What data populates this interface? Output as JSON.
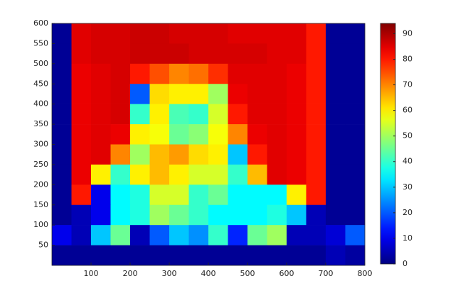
{
  "chart_data": {
    "type": "heatmap",
    "colormap": "jet",
    "x": [
      25,
      75,
      125,
      175,
      225,
      275,
      325,
      375,
      425,
      475,
      525,
      575,
      625,
      675,
      725,
      775
    ],
    "y": [
      575,
      525,
      475,
      425,
      375,
      325,
      275,
      225,
      175,
      125,
      75,
      25
    ],
    "values": [
      [
        2,
        85,
        86,
        86,
        87,
        87,
        86,
        86,
        86,
        85,
        85,
        85,
        85,
        80,
        2,
        2
      ],
      [
        2,
        85,
        86,
        86,
        87,
        87,
        87,
        86,
        86,
        86,
        86,
        85,
        85,
        80,
        2,
        2
      ],
      [
        2,
        84,
        85,
        86,
        80,
        75,
        70,
        72,
        78,
        85,
        85,
        85,
        84,
        80,
        2,
        2
      ],
      [
        2,
        84,
        85,
        86,
        20,
        62,
        60,
        60,
        50,
        84,
        85,
        85,
        84,
        80,
        2,
        2
      ],
      [
        2,
        84,
        85,
        86,
        40,
        60,
        42,
        40,
        55,
        80,
        85,
        85,
        84,
        80,
        2,
        2
      ],
      [
        2,
        84,
        85,
        84,
        60,
        58,
        45,
        48,
        58,
        70,
        84,
        85,
        84,
        80,
        2,
        2
      ],
      [
        2,
        84,
        85,
        70,
        50,
        65,
        68,
        62,
        60,
        30,
        80,
        85,
        84,
        80,
        2,
        2
      ],
      [
        2,
        84,
        60,
        40,
        60,
        65,
        60,
        55,
        55,
        40,
        65,
        85,
        84,
        80,
        2,
        2
      ],
      [
        2,
        80,
        10,
        35,
        38,
        55,
        55,
        40,
        45,
        35,
        35,
        35,
        60,
        80,
        2,
        2
      ],
      [
        2,
        5,
        10,
        35,
        38,
        50,
        45,
        40,
        35,
        35,
        35,
        38,
        30,
        5,
        2,
        2
      ],
      [
        10,
        5,
        30,
        45,
        5,
        20,
        30,
        25,
        40,
        15,
        45,
        50,
        5,
        5,
        8,
        20
      ],
      [
        2,
        2,
        2,
        2,
        2,
        2,
        2,
        2,
        2,
        2,
        2,
        2,
        2,
        2,
        5,
        3
      ]
    ],
    "xlim": [
      0,
      800
    ],
    "ylim": [
      0,
      600
    ],
    "xticks": [
      100,
      200,
      300,
      400,
      500,
      600,
      700,
      800
    ],
    "yticks": [
      50,
      100,
      150,
      200,
      250,
      300,
      350,
      400,
      450,
      500,
      550,
      600
    ],
    "clim": [
      0,
      94
    ],
    "cticks": [
      0,
      10,
      20,
      30,
      40,
      50,
      60,
      70,
      80,
      90
    ]
  }
}
